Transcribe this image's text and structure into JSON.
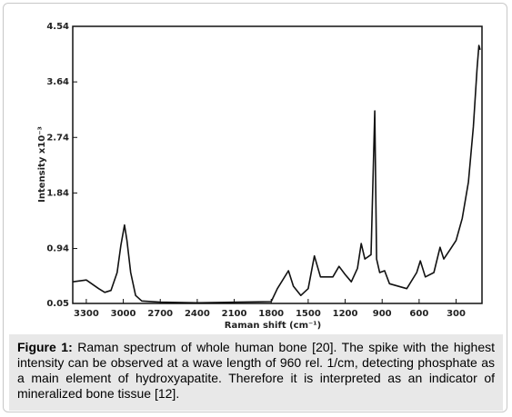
{
  "chart_data": {
    "type": "line",
    "x_label": "Raman shift (cm⁻¹)",
    "y_label": "Intensity x10⁻³",
    "x": [
      3410,
      3300,
      3200,
      3150,
      3100,
      3050,
      3020,
      2990,
      2970,
      2940,
      2900,
      2850,
      2700,
      2400,
      1800,
      1750,
      1660,
      1620,
      1560,
      1500,
      1450,
      1400,
      1300,
      1250,
      1200,
      1150,
      1100,
      1070,
      1040,
      990,
      960,
      945,
      920,
      880,
      840,
      700,
      620,
      590,
      550,
      480,
      430,
      400,
      350,
      300,
      250,
      200,
      160,
      130,
      115,
      105
    ],
    "series": [
      {
        "color": "#111111",
        "values": [
          0.4,
          0.43,
          0.29,
          0.23,
          0.26,
          0.55,
          0.99,
          1.32,
          1.07,
          0.55,
          0.18,
          0.09,
          0.07,
          0.06,
          0.08,
          0.29,
          0.58,
          0.33,
          0.18,
          0.29,
          0.82,
          0.48,
          0.48,
          0.65,
          0.52,
          0.4,
          0.62,
          1.02,
          0.77,
          0.84,
          3.17,
          0.77,
          0.55,
          0.58,
          0.37,
          0.29,
          0.55,
          0.74,
          0.48,
          0.55,
          0.96,
          0.77,
          0.92,
          1.07,
          1.43,
          2.02,
          2.91,
          3.86,
          4.23,
          4.16
        ]
      }
    ],
    "xlim": [
      3410,
      90
    ],
    "xticks": [
      3300,
      3000,
      2700,
      2400,
      2100,
      1800,
      1500,
      1200,
      900,
      600,
      300
    ],
    "ylim": [
      0.05,
      4.54
    ],
    "yticks": [
      0.05,
      0.94,
      1.84,
      2.74,
      3.64,
      4.54
    ],
    "caption": {
      "label": "Figure 1:",
      "text": "Raman spectrum of whole human bone [20]. The spike with the highest intensity can be observed at a wave length of 960 rel. 1/cm, detecting phosphate as a main element of hydroxyapatite. Therefore it is interpreted as an indicator of mineralized bone tissue [12]."
    }
  }
}
